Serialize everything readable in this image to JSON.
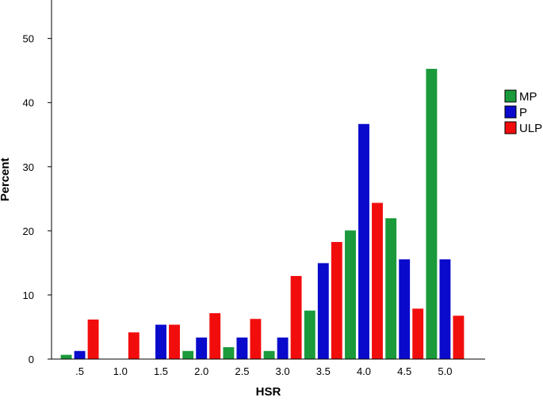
{
  "chart_data": {
    "type": "bar",
    "xlabel": "HSR",
    "ylabel": "Percent",
    "categories": [
      ".5",
      "1.0",
      "1.5",
      "2.0",
      "2.5",
      "3.0",
      "3.5",
      "4.0",
      "4.5",
      "5.0"
    ],
    "ylim": [
      0,
      56
    ],
    "yticks": [
      0,
      10,
      20,
      30,
      40,
      50
    ],
    "grid": false,
    "legend_position": "right",
    "series": [
      {
        "name": "MP",
        "color": "#1a9a3a",
        "values": [
          0.7,
          0,
          0,
          1.3,
          1.9,
          1.3,
          7.6,
          20.1,
          22.0,
          45.3
        ]
      },
      {
        "name": "P",
        "color": "#0a0acc",
        "values": [
          1.3,
          0,
          5.4,
          3.4,
          3.4,
          3.4,
          15.0,
          36.7,
          15.6,
          15.6
        ]
      },
      {
        "name": "ULP",
        "color": "#f20d0d",
        "values": [
          6.2,
          4.2,
          5.4,
          7.2,
          6.3,
          13.0,
          18.3,
          24.4,
          7.9,
          6.8
        ]
      }
    ]
  }
}
